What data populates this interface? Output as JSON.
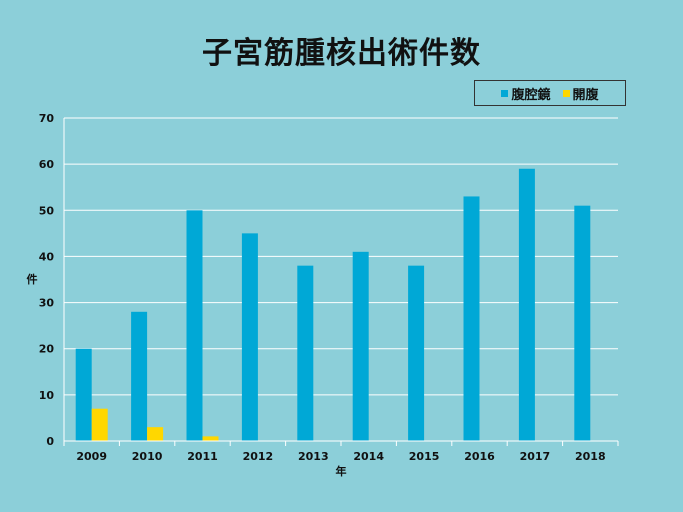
{
  "chart_data": {
    "type": "bar",
    "title": "子宮筋腫核出術件数",
    "xlabel": "年",
    "ylabel": "件",
    "ylim": [
      0,
      70
    ],
    "yticks": [
      0,
      10,
      20,
      30,
      40,
      50,
      60,
      70
    ],
    "grid": true,
    "legend_position": "top-right",
    "categories": [
      "2009",
      "2010",
      "2011",
      "2012",
      "2013",
      "2014",
      "2015",
      "2016",
      "2017",
      "2018"
    ],
    "series": [
      {
        "name": "腹腔鏡",
        "color": "#00a8d6",
        "values": [
          20,
          28,
          50,
          45,
          38,
          41,
          38,
          53,
          59,
          51
        ]
      },
      {
        "name": "開腹",
        "color": "#ffd700",
        "values": [
          7,
          3,
          1,
          0,
          0,
          0,
          0,
          0,
          0,
          0
        ]
      }
    ]
  }
}
